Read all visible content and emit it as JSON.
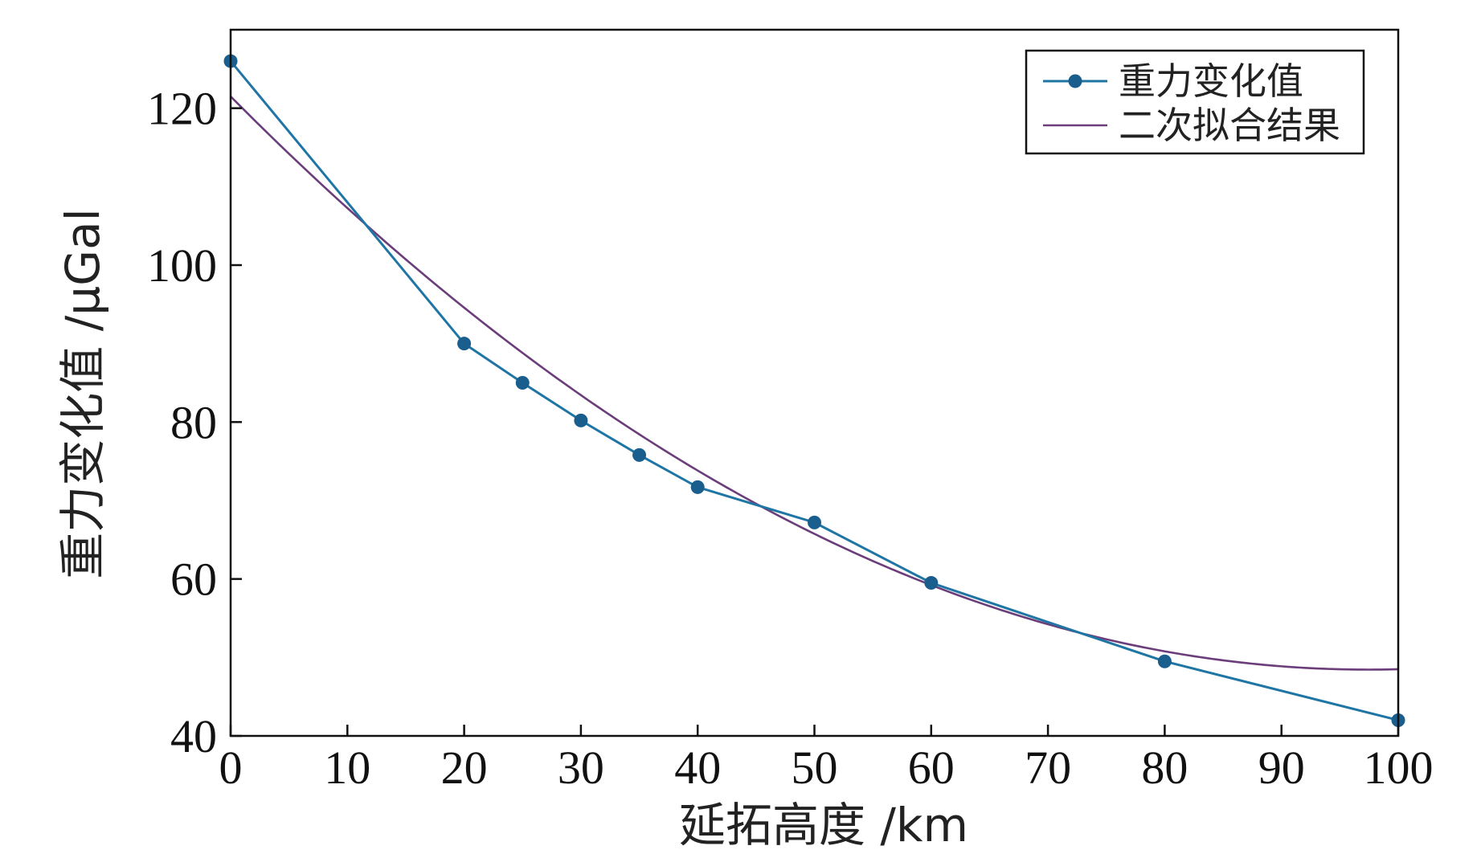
{
  "chart_data": {
    "type": "line",
    "title": "",
    "xlabel": "延拓高度 /km",
    "ylabel": "重力变化值 /μGal",
    "xlim": [
      0,
      100
    ],
    "ylim": [
      40,
      130
    ],
    "x_ticks": [
      0,
      10,
      20,
      30,
      40,
      50,
      60,
      70,
      80,
      90,
      100
    ],
    "y_ticks": [
      40,
      60,
      80,
      100,
      120
    ],
    "grid": false,
    "legend_position": "top-right",
    "series": [
      {
        "name": "重力变化值",
        "color": "#1f75a3",
        "marker": "circle",
        "x": [
          0,
          20,
          25,
          30,
          35,
          40,
          50,
          60,
          80,
          100
        ],
        "y": [
          126,
          90,
          85,
          80.2,
          75.8,
          71.7,
          67.2,
          59.5,
          49.5,
          42
        ]
      },
      {
        "name": "二次拟合结果",
        "color": "#6b3d7a",
        "marker": "none",
        "fit": "quadratic",
        "coefficients": [
          121.5,
          -1.5,
          0.0077
        ]
      }
    ]
  }
}
